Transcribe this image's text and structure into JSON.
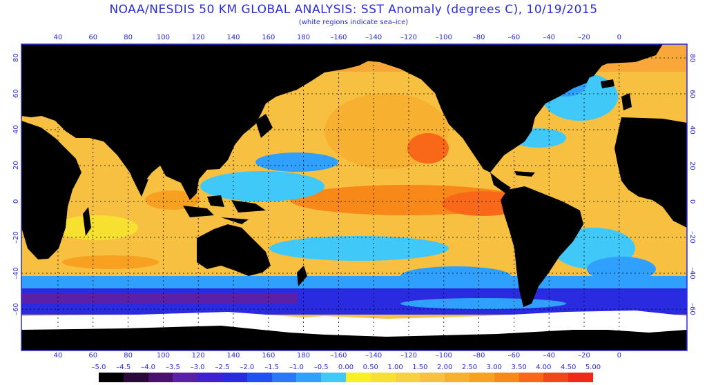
{
  "header": {
    "title": "NOAA/NESDIS 50 KM GLOBAL ANALYSIS: SST Anomaly (degrees C), 10/19/2015",
    "subtitle": "(white regions indicate sea–ice)"
  },
  "map": {
    "lon_labels": [
      "40",
      "60",
      "80",
      "100",
      "120",
      "140",
      "160",
      "180",
      "–160",
      "–140",
      "–120",
      "–100",
      "–80",
      "–60",
      "–40",
      "–20",
      "0"
    ],
    "lat_labels": [
      "80",
      "60",
      "40",
      "20",
      "0",
      "–20",
      "–40",
      "–60"
    ],
    "colors": {
      "land": "#000000",
      "seaice": "#ffffff",
      "frame": "#2a2ad8",
      "gridline": "#000000"
    }
  },
  "colorbar": {
    "labels": [
      "–5.0",
      "–4.5",
      "–4.0",
      "–3.5",
      "–3.0",
      "–2.5",
      "–2.0",
      "–1.5",
      "–1.0",
      "–0.5",
      "0.00",
      "0.50",
      "1.00",
      "1.50",
      "2.00",
      "2.50",
      "3.00",
      "3.50",
      "4.00",
      "4.50",
      "5.00"
    ],
    "colors": [
      "#000000",
      "#2a0a3a",
      "#4a1070",
      "#5a20a8",
      "#4020d0",
      "#2a2ae0",
      "#2050f0",
      "#2878f8",
      "#30a0ff",
      "#40c8f8",
      "#f8f020",
      "#f8e030",
      "#f8d040",
      "#f8c040",
      "#f8b030",
      "#f8a020",
      "#f88818",
      "#f86818",
      "#f04818",
      "#f02818"
    ]
  }
}
